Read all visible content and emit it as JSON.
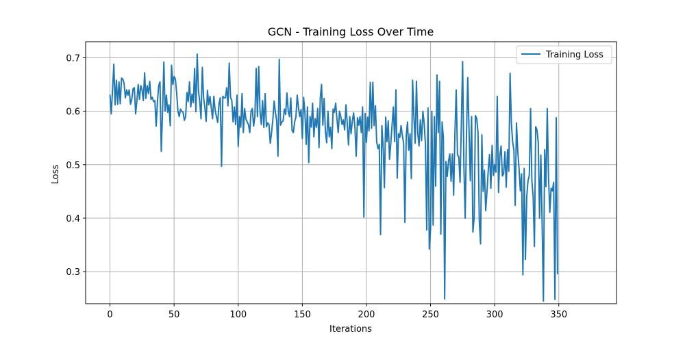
{
  "chart_data": {
    "type": "line",
    "title": "GCN - Training Loss Over Time",
    "xlabel": "Iterations",
    "ylabel": "Loss",
    "xlim": [
      -19,
      395
    ],
    "ylim": [
      0.24,
      0.73
    ],
    "xticks": [
      0,
      50,
      100,
      150,
      200,
      250,
      300,
      350
    ],
    "yticks": [
      0.3,
      0.4,
      0.5,
      0.6,
      0.7
    ],
    "ytick_labels": [
      "0.3",
      "0.4",
      "0.5",
      "0.6",
      "0.7"
    ],
    "grid": true,
    "legend_position": "top-right",
    "series": [
      {
        "name": "Training Loss",
        "color": "#1f77b4",
        "x_start": 0,
        "x_step": 1,
        "values": [
          0.63,
          0.595,
          0.64,
          0.688,
          0.612,
          0.658,
          0.613,
          0.655,
          0.614,
          0.662,
          0.66,
          0.652,
          0.625,
          0.64,
          0.63,
          0.64,
          0.613,
          0.622,
          0.642,
          0.644,
          0.595,
          0.62,
          0.65,
          0.622,
          0.648,
          0.64,
          0.62,
          0.672,
          0.624,
          0.648,
          0.633,
          0.656,
          0.622,
          0.626,
          0.618,
          0.62,
          0.572,
          0.618,
          0.648,
          0.655,
          0.525,
          0.6,
          0.692,
          0.6,
          0.63,
          0.598,
          0.612,
          0.573,
          0.686,
          0.65,
          0.665,
          0.66,
          0.634,
          0.6,
          0.59,
          0.604,
          0.6,
          0.598,
          0.583,
          0.59,
          0.635,
          0.618,
          0.655,
          0.608,
          0.632,
          0.616,
          0.68,
          0.599,
          0.707,
          0.638,
          0.618,
          0.586,
          0.682,
          0.625,
          0.607,
          0.581,
          0.639,
          0.612,
          0.628,
          0.606,
          0.586,
          0.628,
          0.602,
          0.59,
          0.579,
          0.614,
          0.625,
          0.497,
          0.628,
          0.625,
          0.625,
          0.644,
          0.61,
          0.69,
          0.626,
          0.62,
          0.58,
          0.608,
          0.575,
          0.63,
          0.534,
          0.59,
          0.57,
          0.633,
          0.56,
          0.605,
          0.585,
          0.58,
          0.575,
          0.56,
          0.6,
          0.605,
          0.572,
          0.59,
          0.68,
          0.59,
          0.684,
          0.6,
          0.575,
          0.62,
          0.57,
          0.633,
          0.571,
          0.578,
          0.575,
          0.54,
          0.56,
          0.584,
          0.619,
          0.598,
          0.582,
          0.516,
          0.697,
          0.574,
          0.58,
          0.582,
          0.604,
          0.594,
          0.634,
          0.6,
          0.59,
          0.625,
          0.564,
          0.56,
          0.58,
          0.589,
          0.63,
          0.606,
          0.59,
          0.603,
          0.549,
          0.626,
          0.598,
          0.538,
          0.608,
          0.504,
          0.59,
          0.57,
          0.615,
          0.552,
          0.586,
          0.57,
          0.605,
          0.532,
          0.625,
          0.65,
          0.574,
          0.624,
          0.562,
          0.541,
          0.6,
          0.552,
          0.57,
          0.53,
          0.604,
          0.598,
          0.615,
          0.585,
          0.56,
          0.6,
          0.59,
          0.575,
          0.584,
          0.565,
          0.612,
          0.578,
          0.537,
          0.59,
          0.558,
          0.582,
          0.597,
          0.57,
          0.516,
          0.588,
          0.574,
          0.59,
          0.56,
          0.608,
          0.402,
          0.596,
          0.542,
          0.589,
          0.563,
          0.654,
          0.568,
          0.654,
          0.573,
          0.61,
          0.542,
          0.53,
          0.538,
          0.369,
          0.573,
          0.534,
          0.457,
          0.589,
          0.543,
          0.582,
          0.51,
          0.54,
          0.575,
          0.608,
          0.543,
          0.64,
          0.475,
          0.558,
          0.551,
          0.573,
          0.555,
          0.54,
          0.392,
          0.553,
          0.58,
          0.527,
          0.558,
          0.474,
          0.658,
          0.59,
          0.54,
          0.656,
          0.56,
          0.535,
          0.584,
          0.545,
          0.6,
          0.578,
          0.538,
          0.378,
          0.606,
          0.342,
          0.38,
          0.6,
          0.387,
          0.59,
          0.46,
          0.668,
          0.56,
          0.656,
          0.37,
          0.58,
          0.55,
          0.249,
          0.506,
          0.478,
          0.507,
          0.52,
          0.469,
          0.52,
          0.443,
          0.56,
          0.64,
          0.518,
          0.515,
          0.467,
          0.575,
          0.693,
          0.498,
          0.4,
          0.555,
          0.663,
          0.565,
          0.47,
          0.59,
          0.374,
          0.401,
          0.592,
          0.586,
          0.56,
          0.395,
          0.352,
          0.556,
          0.45,
          0.49,
          0.414,
          0.45,
          0.49,
          0.519,
          0.456,
          0.536,
          0.48,
          0.5,
          0.486,
          0.628,
          0.448,
          0.516,
          0.535,
          0.479,
          0.483,
          0.524,
          0.458,
          0.528,
          0.488,
          0.671,
          0.578,
          0.543,
          0.527,
          0.424,
          0.578,
          0.525,
          0.493,
          0.451,
          0.483,
          0.294,
          0.493,
          0.323,
          0.44,
          0.47,
          0.48,
          0.605,
          0.47,
          0.44,
          0.347,
          0.571,
          0.565,
          0.541,
          0.4,
          0.518,
          0.389,
          0.245,
          0.528,
          0.459,
          0.605,
          0.476,
          0.411,
          0.456,
          0.451,
          0.467,
          0.248,
          0.588,
          0.296
        ]
      }
    ]
  }
}
